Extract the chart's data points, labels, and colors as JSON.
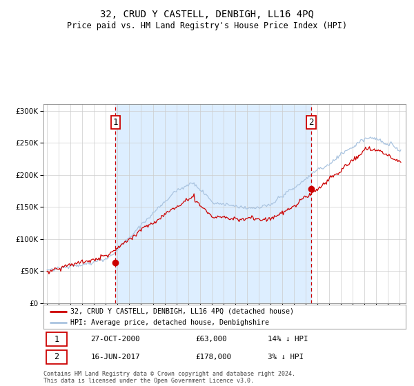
{
  "title": "32, CRUD Y CASTELL, DENBIGH, LL16 4PQ",
  "subtitle": "Price paid vs. HM Land Registry's House Price Index (HPI)",
  "legend_line1": "32, CRUD Y CASTELL, DENBIGH, LL16 4PQ (detached house)",
  "legend_line2": "HPI: Average price, detached house, Denbighshire",
  "annotation1_date": "27-OCT-2000",
  "annotation1_price": "£63,000",
  "annotation1_hpi": "14% ↓ HPI",
  "annotation2_date": "16-JUN-2017",
  "annotation2_price": "£178,000",
  "annotation2_hpi": "3% ↓ HPI",
  "footer": "Contains HM Land Registry data © Crown copyright and database right 2024.\nThis data is licensed under the Open Government Licence v3.0.",
  "vline1_x": 2000.83,
  "vline2_x": 2017.45,
  "sale1_x": 2000.83,
  "sale1_y": 63000,
  "sale2_x": 2017.45,
  "sale2_y": 178000,
  "hpi_color": "#aac4e0",
  "price_color": "#cc0000",
  "shaded_region_color": "#ddeeff",
  "vline_color": "#cc0000",
  "background_color": "#ffffff",
  "ylim": [
    0,
    310000
  ],
  "xlim_start": 1994.7,
  "xlim_end": 2025.5,
  "yticks": [
    0,
    50000,
    100000,
    150000,
    200000,
    250000,
    300000
  ],
  "title_fontsize": 10,
  "subtitle_fontsize": 8.5
}
